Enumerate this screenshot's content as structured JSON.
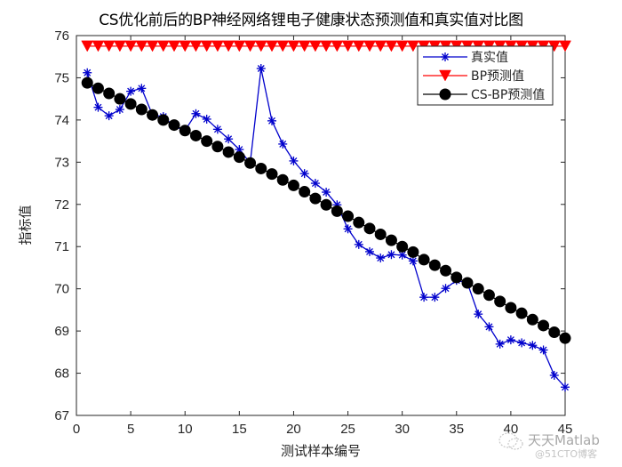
{
  "chart_data": {
    "type": "line",
    "title": "CS优化前后的BP神经网络锂电子健康状态预测值和真实值对比图",
    "xlabel": "测试样本编号",
    "ylabel": "指标值",
    "xlim": [
      0,
      45
    ],
    "ylim": [
      67,
      76
    ],
    "xticks": [
      0,
      5,
      10,
      15,
      20,
      25,
      30,
      35,
      40,
      45
    ],
    "yticks": [
      67,
      68,
      69,
      70,
      71,
      72,
      73,
      74,
      75,
      76
    ],
    "grid": false,
    "legend_position": "upper right",
    "x": [
      1,
      2,
      3,
      4,
      5,
      6,
      7,
      8,
      9,
      10,
      11,
      12,
      13,
      14,
      15,
      16,
      17,
      18,
      19,
      20,
      21,
      22,
      23,
      24,
      25,
      26,
      27,
      28,
      29,
      30,
      31,
      32,
      33,
      34,
      35,
      36,
      37,
      38,
      39,
      40,
      41,
      42,
      43,
      44,
      45
    ],
    "series": [
      {
        "name": "真实值",
        "color": "#0000cc",
        "marker": "asterisk",
        "values": [
          75.12,
          74.3,
          74.1,
          74.25,
          74.68,
          74.75,
          74.12,
          74.08,
          73.85,
          73.75,
          74.15,
          74.02,
          73.78,
          73.55,
          73.3,
          72.98,
          75.22,
          73.98,
          73.43,
          73.03,
          72.73,
          72.5,
          72.29,
          71.99,
          71.42,
          71.05,
          70.88,
          70.73,
          70.81,
          70.8,
          70.66,
          69.8,
          69.8,
          70.01,
          70.2,
          70.14,
          69.4,
          69.1,
          68.69,
          68.79,
          68.72,
          68.66,
          68.55,
          67.95,
          67.67
        ]
      },
      {
        "name": "BP预测值",
        "color": "#ff0000",
        "marker": "triangle-down",
        "values": [
          75.75,
          75.75,
          75.75,
          75.75,
          75.75,
          75.75,
          75.75,
          75.75,
          75.75,
          75.75,
          75.75,
          75.75,
          75.75,
          75.75,
          75.75,
          75.75,
          75.75,
          75.75,
          75.75,
          75.75,
          75.75,
          75.75,
          75.75,
          75.75,
          75.75,
          75.75,
          75.75,
          75.75,
          75.75,
          75.75,
          75.75,
          75.75,
          75.75,
          75.75,
          75.75,
          75.75,
          75.75,
          75.75,
          75.75,
          75.75,
          75.75,
          75.75,
          75.75,
          75.75,
          75.75
        ]
      },
      {
        "name": "CS-BP预测值",
        "color": "#000000",
        "marker": "circle",
        "values": [
          74.88,
          74.75,
          74.63,
          74.5,
          74.38,
          74.25,
          74.12,
          74.0,
          73.88,
          73.75,
          73.63,
          73.5,
          73.37,
          73.24,
          73.12,
          72.98,
          72.85,
          72.72,
          72.58,
          72.45,
          72.3,
          72.14,
          71.99,
          71.84,
          71.72,
          71.57,
          71.43,
          71.29,
          71.15,
          71.0,
          70.87,
          70.69,
          70.56,
          70.43,
          70.27,
          70.14,
          70.0,
          69.85,
          69.7,
          69.55,
          69.42,
          69.27,
          69.13,
          68.97,
          68.83
        ]
      }
    ]
  },
  "legend": {
    "items": [
      "真实值",
      "BP预测值",
      "CS-BP预测值"
    ]
  },
  "watermark": {
    "line1": "天天Matlab",
    "line2": "@51CTO博客"
  }
}
